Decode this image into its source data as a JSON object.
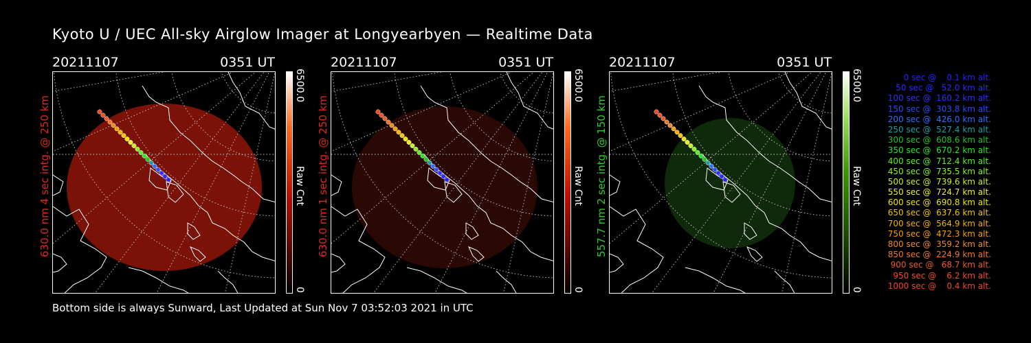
{
  "title": "Kyoto U / UEC All-sky Airglow Imager at Longyearbyen — Realtime Data",
  "footer": "Bottom side is always Sunward, Last Updated at Sun Nov  7 03:52:03 2021 in UTC",
  "panels": [
    {
      "date": "20211107",
      "time": "0351 UT",
      "ylabel": "630.0 nm 4 sec intg. @ 250 km",
      "ylabel_color": "#e0281e",
      "cbar_max": "6500.0",
      "cbar_min": "0",
      "cbar_label": "Raw Cnt",
      "cbar_color": "#b01000",
      "glow_color": "#7a1208",
      "glow_level": "bright"
    },
    {
      "date": "20211107",
      "time": "0351 UT",
      "ylabel": "630.0 nm 1 sec intg. @ 250 km",
      "ylabel_color": "#e0281e",
      "cbar_max": "6500.0",
      "cbar_min": "0",
      "cbar_label": "Raw Cnt",
      "cbar_color": "#b01000",
      "glow_color": "#2a0804",
      "glow_level": "dim"
    },
    {
      "date": "20211107",
      "time": "0351 UT",
      "ylabel": "557.7 nm 2 sec intg. @ 150 km",
      "ylabel_color": "#2ecc2e",
      "cbar_max": "6500.0",
      "cbar_min": "0",
      "cbar_label": "Raw Cnt",
      "cbar_color": "#3a9a00",
      "glow_color": "#0f2a0a",
      "glow_level": "dim"
    }
  ],
  "legend": [
    {
      "text": "   0 sec @    0.1 km alt.",
      "color": "#2424ff"
    },
    {
      "text": "  50 sec @   52.0 km alt.",
      "color": "#2a2aff"
    },
    {
      "text": " 100 sec @  160.2 km alt.",
      "color": "#3030ff"
    },
    {
      "text": " 150 sec @  303.8 km alt.",
      "color": "#2c4cff"
    },
    {
      "text": " 200 sec @  426.0 km alt.",
      "color": "#3070ff"
    },
    {
      "text": " 250 sec @  527.4 km alt.",
      "color": "#1aa0a0"
    },
    {
      "text": " 300 sec @  608.6 km alt.",
      "color": "#1ec81e"
    },
    {
      "text": " 350 sec @  670.2 km alt.",
      "color": "#28e628"
    },
    {
      "text": " 400 sec @  712.4 km alt.",
      "color": "#5af02a"
    },
    {
      "text": " 450 sec @  735.5 km alt.",
      "color": "#8cf028"
    },
    {
      "text": " 500 sec @  739.6 km alt.",
      "color": "#c8f028"
    },
    {
      "text": " 550 sec @  724.7 km alt.",
      "color": "#f0f028"
    },
    {
      "text": " 600 sec @  690.8 km alt.",
      "color": "#f0e600"
    },
    {
      "text": " 650 sec @  637.6 km alt.",
      "color": "#f0c800"
    },
    {
      "text": " 700 sec @  564.9 km alt.",
      "color": "#f0b400"
    },
    {
      "text": " 750 sec @  472.3 km alt.",
      "color": "#f0a000"
    },
    {
      "text": " 800 sec @  359.2 km alt.",
      "color": "#f08c1e"
    },
    {
      "text": " 850 sec @  224.9 km alt.",
      "color": "#f07828"
    },
    {
      "text": " 900 sec @   68.7 km alt.",
      "color": "#f05a28"
    },
    {
      "text": " 950 sec @    6.2 km alt.",
      "color": "#f0502a"
    },
    {
      "text": "1000 sec @    0.4 km alt.",
      "color": "#f04628"
    }
  ]
}
